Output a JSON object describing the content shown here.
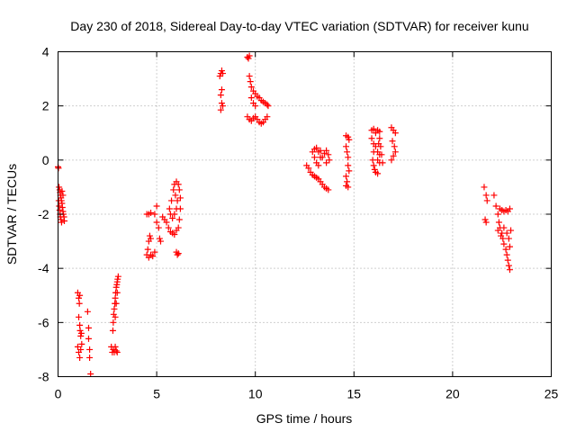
{
  "chart_data": {
    "type": "scatter",
    "title": "Day 230 of 2018, Sidereal Day-to-day VTEC variation (SDTVAR) for receiver kunu",
    "xlabel": "GPS time / hours",
    "ylabel": "SDTVAR / TECUs",
    "xlim": [
      0,
      25
    ],
    "ylim": [
      -8,
      4
    ],
    "x_ticks": [
      0,
      5,
      10,
      15,
      20,
      25
    ],
    "y_ticks": [
      -8,
      -6,
      -4,
      -2,
      0,
      2,
      4
    ],
    "x_tick_labels": [
      "0",
      "5",
      "10",
      "15",
      "20",
      "25"
    ],
    "y_tick_labels": [
      "-8",
      "-6",
      "-4",
      "-2",
      "0",
      "2",
      "4"
    ],
    "grid": true,
    "marker": "+",
    "color": "#ff0000",
    "series": [
      {
        "name": "SDTVAR",
        "points": [
          [
            0.0,
            -0.25
          ],
          [
            0.02,
            -0.3
          ],
          [
            0.05,
            -1.0
          ],
          [
            0.08,
            -1.1
          ],
          [
            0.1,
            -1.2
          ],
          [
            0.12,
            -1.3
          ],
          [
            0.15,
            -1.4
          ],
          [
            0.17,
            -1.5
          ],
          [
            0.2,
            -1.6
          ],
          [
            0.22,
            -1.75
          ],
          [
            0.25,
            -1.9
          ],
          [
            0.27,
            -2.0
          ],
          [
            0.3,
            -2.1
          ],
          [
            0.32,
            -2.25
          ],
          [
            0.04,
            -1.5
          ],
          [
            0.06,
            -1.7
          ],
          [
            0.08,
            -1.85
          ],
          [
            0.1,
            -2.0
          ],
          [
            0.12,
            -2.1
          ],
          [
            0.15,
            -2.2
          ],
          [
            0.18,
            -2.3
          ],
          [
            0.2,
            -1.15
          ],
          [
            0.25,
            -1.3
          ],
          [
            1.0,
            -4.9
          ],
          [
            1.05,
            -5.1
          ],
          [
            1.1,
            -5.0
          ],
          [
            1.08,
            -5.3
          ],
          [
            1.05,
            -5.8
          ],
          [
            1.1,
            -6.1
          ],
          [
            1.12,
            -6.3
          ],
          [
            1.15,
            -6.5
          ],
          [
            1.18,
            -6.4
          ],
          [
            1.0,
            -6.9
          ],
          [
            1.05,
            -7.1
          ],
          [
            1.1,
            -7.3
          ],
          [
            1.15,
            -7.0
          ],
          [
            1.2,
            -6.8
          ],
          [
            1.5,
            -5.6
          ],
          [
            1.55,
            -6.2
          ],
          [
            1.55,
            -6.6
          ],
          [
            1.6,
            -7.0
          ],
          [
            1.6,
            -7.3
          ],
          [
            1.65,
            -7.9
          ],
          [
            2.7,
            -6.9
          ],
          [
            2.75,
            -7.1
          ],
          [
            2.8,
            -7.0
          ],
          [
            2.85,
            -7.1
          ],
          [
            2.9,
            -6.9
          ],
          [
            2.95,
            -7.05
          ],
          [
            3.0,
            -7.1
          ],
          [
            2.78,
            -6.3
          ],
          [
            2.8,
            -6.0
          ],
          [
            2.82,
            -5.7
          ],
          [
            2.85,
            -5.5
          ],
          [
            2.88,
            -5.3
          ],
          [
            2.9,
            -5.1
          ],
          [
            2.92,
            -4.9
          ],
          [
            2.95,
            -4.7
          ],
          [
            2.98,
            -4.6
          ],
          [
            3.0,
            -4.5
          ],
          [
            3.02,
            -4.4
          ],
          [
            3.05,
            -4.3
          ],
          [
            2.9,
            -5.8
          ],
          [
            2.95,
            -5.3
          ],
          [
            3.0,
            -4.9
          ],
          [
            4.5,
            -2.0
          ],
          [
            4.6,
            -2.0
          ],
          [
            4.7,
            -1.95
          ],
          [
            4.55,
            -3.3
          ],
          [
            4.6,
            -3.0
          ],
          [
            4.65,
            -2.8
          ],
          [
            4.7,
            -2.9
          ],
          [
            4.5,
            -3.5
          ],
          [
            4.6,
            -3.6
          ],
          [
            4.7,
            -3.5
          ],
          [
            4.8,
            -3.55
          ],
          [
            4.9,
            -3.4
          ],
          [
            4.9,
            -2.0
          ],
          [
            5.0,
            -1.7
          ],
          [
            5.0,
            -2.3
          ],
          [
            5.1,
            -2.5
          ],
          [
            5.15,
            -2.9
          ],
          [
            5.2,
            -3.0
          ],
          [
            5.3,
            -2.1
          ],
          [
            5.4,
            -2.2
          ],
          [
            5.5,
            -2.3
          ],
          [
            5.6,
            -2.5
          ],
          [
            5.7,
            -2.65
          ],
          [
            5.8,
            -2.7
          ],
          [
            5.9,
            -2.75
          ],
          [
            6.0,
            -2.6
          ],
          [
            6.1,
            -2.5
          ],
          [
            6.15,
            -2.2
          ],
          [
            6.2,
            -1.8
          ],
          [
            6.2,
            -1.4
          ],
          [
            6.15,
            -1.1
          ],
          [
            6.1,
            -0.9
          ],
          [
            6.0,
            -0.8
          ],
          [
            5.9,
            -0.9
          ],
          [
            5.85,
            -1.1
          ],
          [
            5.95,
            -1.3
          ],
          [
            6.05,
            -1.5
          ],
          [
            6.0,
            -1.8
          ],
          [
            5.9,
            -2.0
          ],
          [
            5.8,
            -2.15
          ],
          [
            5.7,
            -2.0
          ],
          [
            5.65,
            -1.8
          ],
          [
            5.75,
            -1.5
          ],
          [
            6.0,
            -3.4
          ],
          [
            6.05,
            -3.5
          ],
          [
            6.1,
            -3.45
          ],
          [
            8.2,
            3.1
          ],
          [
            8.25,
            3.2
          ],
          [
            8.3,
            3.3
          ],
          [
            8.35,
            3.2
          ],
          [
            8.3,
            2.6
          ],
          [
            8.25,
            2.4
          ],
          [
            8.3,
            2.1
          ],
          [
            8.35,
            2.0
          ],
          [
            8.25,
            1.85
          ],
          [
            9.6,
            3.8
          ],
          [
            9.65,
            3.75
          ],
          [
            9.7,
            3.85
          ],
          [
            9.7,
            3.1
          ],
          [
            9.75,
            2.9
          ],
          [
            9.8,
            2.7
          ],
          [
            9.9,
            2.55
          ],
          [
            10.0,
            2.45
          ],
          [
            10.1,
            2.35
          ],
          [
            10.2,
            2.3
          ],
          [
            10.3,
            2.2
          ],
          [
            10.4,
            2.15
          ],
          [
            10.5,
            2.1
          ],
          [
            10.6,
            2.05
          ],
          [
            10.65,
            2.0
          ],
          [
            9.8,
            2.3
          ],
          [
            9.9,
            2.1
          ],
          [
            10.0,
            2.0
          ],
          [
            9.6,
            1.6
          ],
          [
            9.7,
            1.5
          ],
          [
            9.8,
            1.45
          ],
          [
            9.9,
            1.55
          ],
          [
            10.0,
            1.6
          ],
          [
            10.1,
            1.5
          ],
          [
            10.2,
            1.4
          ],
          [
            10.3,
            1.35
          ],
          [
            10.4,
            1.4
          ],
          [
            10.5,
            1.5
          ],
          [
            10.6,
            1.6
          ],
          [
            12.6,
            -0.2
          ],
          [
            12.7,
            -0.3
          ],
          [
            12.8,
            -0.45
          ],
          [
            12.9,
            -0.55
          ],
          [
            13.0,
            -0.6
          ],
          [
            13.1,
            -0.65
          ],
          [
            13.2,
            -0.7
          ],
          [
            13.3,
            -0.8
          ],
          [
            13.4,
            -0.9
          ],
          [
            13.5,
            -1.0
          ],
          [
            13.6,
            -1.05
          ],
          [
            13.7,
            -1.1
          ],
          [
            12.9,
            0.3
          ],
          [
            13.0,
            0.4
          ],
          [
            13.1,
            0.45
          ],
          [
            13.2,
            0.3
          ],
          [
            13.3,
            0.1
          ],
          [
            13.1,
            -0.1
          ],
          [
            13.0,
            0.1
          ],
          [
            13.2,
            -0.2
          ],
          [
            13.4,
            0.1
          ],
          [
            13.5,
            0.25
          ],
          [
            13.6,
            0.35
          ],
          [
            13.7,
            0.2
          ],
          [
            13.75,
            0.0
          ],
          [
            13.6,
            -0.1
          ],
          [
            13.3,
            0.35
          ],
          [
            14.6,
            0.9
          ],
          [
            14.7,
            0.85
          ],
          [
            14.75,
            0.75
          ],
          [
            14.6,
            0.5
          ],
          [
            14.65,
            0.3
          ],
          [
            14.7,
            0.1
          ],
          [
            14.7,
            -0.2
          ],
          [
            14.75,
            -0.4
          ],
          [
            14.6,
            -0.6
          ],
          [
            14.65,
            -0.8
          ],
          [
            14.6,
            -0.95
          ],
          [
            14.7,
            -1.0
          ],
          [
            15.9,
            1.1
          ],
          [
            16.0,
            1.15
          ],
          [
            16.1,
            1.0
          ],
          [
            16.2,
            1.1
          ],
          [
            16.3,
            1.05
          ],
          [
            15.9,
            0.8
          ],
          [
            16.0,
            0.6
          ],
          [
            16.1,
            0.5
          ],
          [
            16.2,
            0.3
          ],
          [
            16.3,
            0.2
          ],
          [
            16.2,
            0.0
          ],
          [
            16.3,
            -0.1
          ],
          [
            16.0,
            0.3
          ],
          [
            15.95,
            0.0
          ],
          [
            16.0,
            -0.2
          ],
          [
            16.05,
            -0.35
          ],
          [
            16.1,
            -0.45
          ],
          [
            16.2,
            -0.5
          ],
          [
            16.25,
            0.6
          ],
          [
            16.3,
            0.8
          ],
          [
            16.35,
            0.5
          ],
          [
            16.4,
            0.2
          ],
          [
            16.45,
            -0.1
          ],
          [
            16.9,
            1.2
          ],
          [
            17.0,
            1.1
          ],
          [
            17.1,
            1.0
          ],
          [
            16.95,
            0.7
          ],
          [
            17.05,
            0.5
          ],
          [
            17.1,
            0.3
          ],
          [
            17.0,
            0.15
          ],
          [
            16.9,
            0.0
          ],
          [
            21.6,
            -1.0
          ],
          [
            21.7,
            -1.3
          ],
          [
            21.75,
            -1.5
          ],
          [
            21.65,
            -2.2
          ],
          [
            21.7,
            -2.3
          ],
          [
            22.1,
            -1.3
          ],
          [
            22.2,
            -1.7
          ],
          [
            22.3,
            -2.0
          ],
          [
            22.35,
            -2.3
          ],
          [
            22.4,
            -2.5
          ],
          [
            22.5,
            -2.7
          ],
          [
            22.55,
            -2.9
          ],
          [
            22.6,
            -3.1
          ],
          [
            22.7,
            -3.3
          ],
          [
            22.75,
            -3.5
          ],
          [
            22.8,
            -3.7
          ],
          [
            22.85,
            -3.9
          ],
          [
            22.9,
            -4.05
          ],
          [
            22.4,
            -1.8
          ],
          [
            22.5,
            -1.85
          ],
          [
            22.6,
            -1.9
          ],
          [
            22.7,
            -1.85
          ],
          [
            22.8,
            -1.9
          ],
          [
            22.9,
            -1.8
          ],
          [
            22.3,
            -2.6
          ],
          [
            22.45,
            -2.8
          ],
          [
            22.6,
            -2.5
          ],
          [
            22.75,
            -2.7
          ],
          [
            22.85,
            -2.9
          ],
          [
            22.95,
            -2.6
          ],
          [
            22.9,
            -3.2
          ]
        ]
      }
    ]
  }
}
